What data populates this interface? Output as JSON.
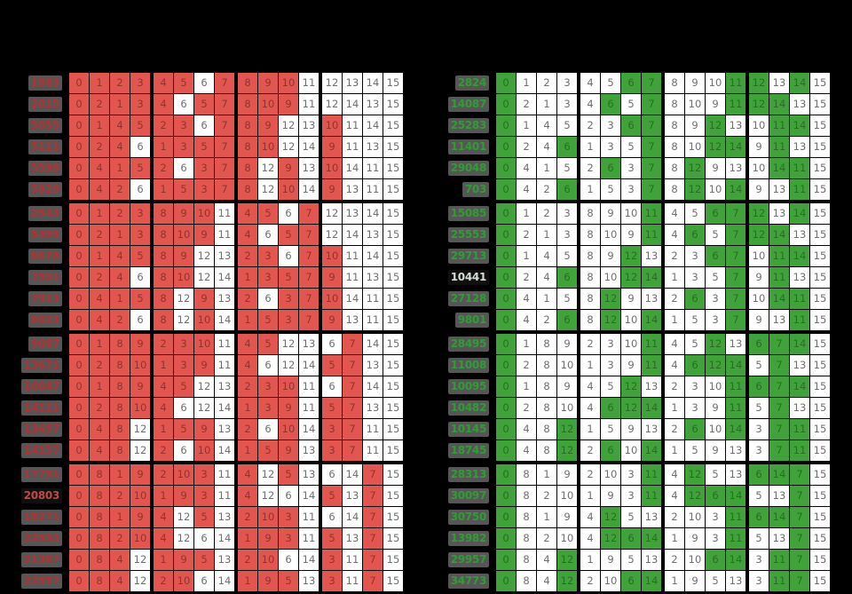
{
  "palette": {
    "background": "#000000",
    "white_cell": "#ffffff",
    "white_cell_text": "#6e6e6e",
    "label_chip_bg": "#565656",
    "selected_chip_bg": "#101010"
  },
  "chart_data": {
    "type": "heatmap",
    "title": "",
    "columns": 16,
    "column_group_size": 4,
    "row_group_size": 6,
    "matrix": [
      [
        0,
        1,
        2,
        3,
        4,
        5,
        6,
        7,
        8,
        9,
        10,
        11,
        12,
        13,
        14,
        15
      ],
      [
        0,
        2,
        1,
        3,
        4,
        6,
        5,
        7,
        8,
        10,
        9,
        11,
        12,
        14,
        13,
        15
      ],
      [
        0,
        1,
        4,
        5,
        2,
        3,
        6,
        7,
        8,
        9,
        12,
        13,
        10,
        11,
        14,
        15
      ],
      [
        0,
        2,
        4,
        6,
        1,
        3,
        5,
        7,
        8,
        10,
        12,
        14,
        9,
        11,
        13,
        15
      ],
      [
        0,
        4,
        1,
        5,
        2,
        6,
        3,
        7,
        8,
        12,
        9,
        13,
        10,
        14,
        11,
        15
      ],
      [
        0,
        4,
        2,
        6,
        1,
        5,
        3,
        7,
        8,
        12,
        10,
        14,
        9,
        13,
        11,
        15
      ],
      [
        0,
        1,
        2,
        3,
        8,
        9,
        10,
        11,
        4,
        5,
        6,
        7,
        12,
        13,
        14,
        15
      ],
      [
        0,
        2,
        1,
        3,
        8,
        10,
        9,
        11,
        4,
        6,
        5,
        7,
        12,
        14,
        13,
        15
      ],
      [
        0,
        1,
        4,
        5,
        8,
        9,
        12,
        13,
        2,
        3,
        6,
        7,
        10,
        11,
        14,
        15
      ],
      [
        0,
        2,
        4,
        6,
        8,
        10,
        12,
        14,
        1,
        3,
        5,
        7,
        9,
        11,
        13,
        15
      ],
      [
        0,
        4,
        1,
        5,
        8,
        12,
        9,
        13,
        2,
        6,
        3,
        7,
        10,
        14,
        11,
        15
      ],
      [
        0,
        4,
        2,
        6,
        8,
        12,
        10,
        14,
        1,
        5,
        3,
        7,
        9,
        13,
        11,
        15
      ],
      [
        0,
        1,
        8,
        9,
        2,
        3,
        10,
        11,
        4,
        5,
        12,
        13,
        6,
        7,
        14,
        15
      ],
      [
        0,
        2,
        8,
        10,
        1,
        3,
        9,
        11,
        4,
        6,
        12,
        14,
        5,
        7,
        13,
        15
      ],
      [
        0,
        1,
        8,
        9,
        4,
        5,
        12,
        13,
        2,
        3,
        10,
        11,
        6,
        7,
        14,
        15
      ],
      [
        0,
        2,
        8,
        10,
        4,
        6,
        12,
        14,
        1,
        3,
        9,
        11,
        5,
        7,
        13,
        15
      ],
      [
        0,
        4,
        8,
        12,
        1,
        5,
        9,
        13,
        2,
        6,
        10,
        14,
        3,
        7,
        11,
        15
      ],
      [
        0,
        4,
        8,
        12,
        2,
        6,
        10,
        14,
        1,
        5,
        9,
        13,
        3,
        7,
        11,
        15
      ],
      [
        0,
        8,
        1,
        9,
        2,
        10,
        3,
        11,
        4,
        12,
        5,
        13,
        6,
        14,
        7,
        15
      ],
      [
        0,
        8,
        2,
        10,
        1,
        9,
        3,
        11,
        4,
        12,
        6,
        14,
        5,
        13,
        7,
        15
      ],
      [
        0,
        8,
        1,
        9,
        4,
        12,
        5,
        13,
        2,
        10,
        3,
        11,
        6,
        14,
        7,
        15
      ],
      [
        0,
        8,
        2,
        10,
        4,
        12,
        6,
        14,
        1,
        9,
        3,
        11,
        5,
        13,
        7,
        15
      ],
      [
        0,
        8,
        4,
        12,
        1,
        9,
        5,
        13,
        2,
        10,
        6,
        14,
        3,
        11,
        7,
        15
      ],
      [
        0,
        8,
        4,
        12,
        2,
        10,
        6,
        14,
        1,
        9,
        5,
        13,
        3,
        11,
        7,
        15
      ]
    ],
    "tables": [
      {
        "side": "left",
        "accent": "red",
        "row_labels": [
          "1983",
          "2015",
          "5055",
          "5111",
          "5599",
          "5929",
          "2543",
          "5495",
          "6678",
          "7591",
          "7913",
          "8023",
          "9087",
          "13671",
          "10047",
          "14111",
          "13657",
          "14157",
          "17791",
          "20803",
          "18271",
          "22593",
          "21387",
          "22557"
        ],
        "selected_label_index": 19,
        "highlight_values": [
          0,
          1,
          2,
          3,
          4,
          5,
          7,
          8,
          9,
          10
        ],
        "colors": {
          "fill": "#e2564f",
          "fill_text": "#8c352f",
          "label_text": "#b03232",
          "label_selected_text": "#c24848"
        }
      },
      {
        "side": "right",
        "accent": "green",
        "row_labels": [
          "2824",
          "14087",
          "25283",
          "11401",
          "29048",
          "703",
          "15085",
          "25553",
          "29713",
          "10441",
          "27128",
          "9801",
          "28495",
          "11008",
          "10095",
          "10482",
          "10145",
          "18745",
          "28313",
          "30097",
          "30750",
          "13982",
          "29957",
          "34773"
        ],
        "selected_label_index": 9,
        "highlight_values": [
          0,
          6,
          7,
          11,
          12,
          14
        ],
        "colors": {
          "fill": "#3fa33a",
          "fill_text": "#2b6b27",
          "label_text": "#2f9e32",
          "label_selected_text": "#d6ddd6"
        }
      }
    ]
  }
}
